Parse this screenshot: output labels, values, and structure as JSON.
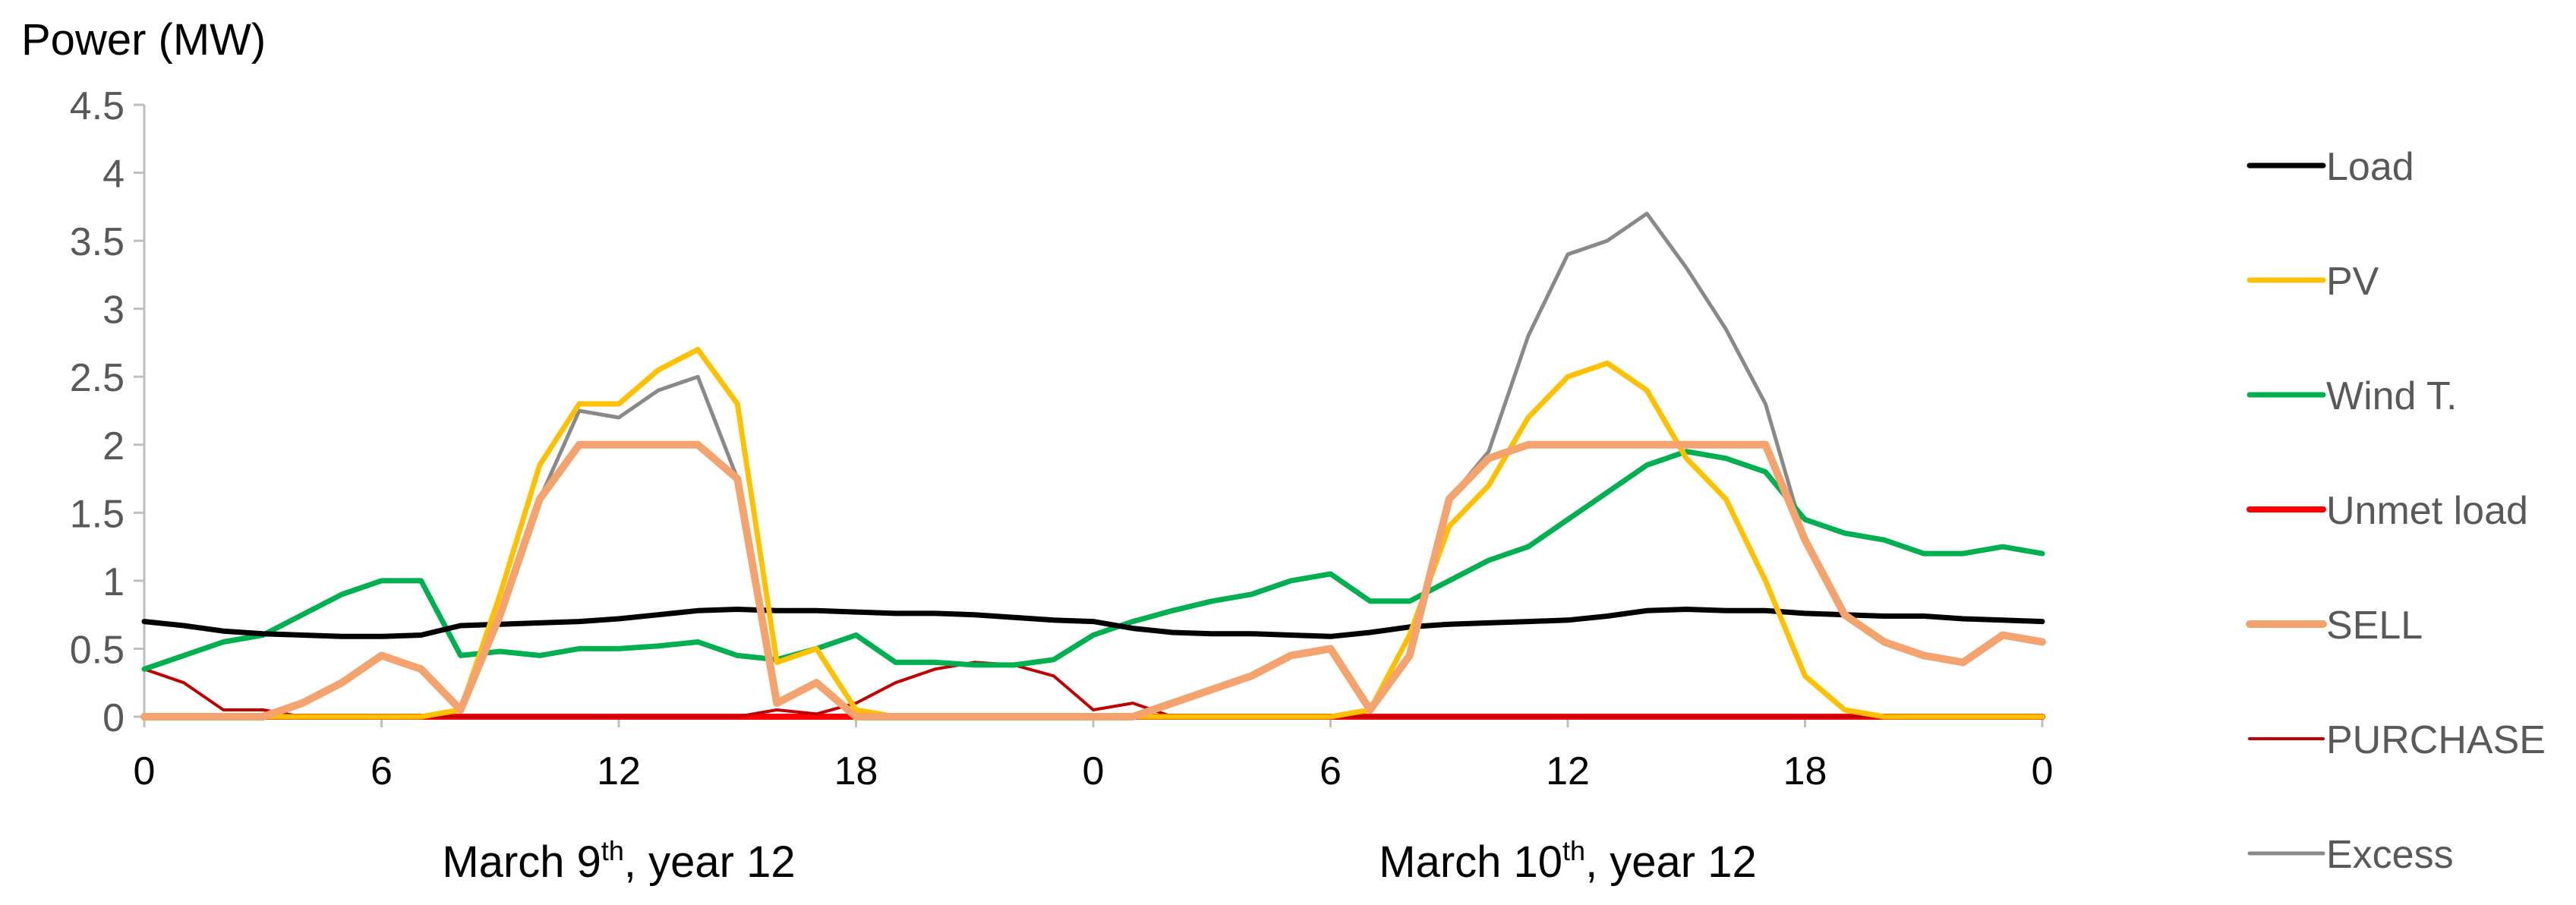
{
  "chart_data": {
    "type": "line",
    "ylabel": "Power (MW)",
    "ylim": [
      0,
      4.5
    ],
    "yticks": [
      "0",
      "0.5",
      "1",
      "1.5",
      "2",
      "2.5",
      "3",
      "3.5",
      "4",
      "4.5"
    ],
    "x_unit": "hours",
    "xlim": [
      0,
      48
    ],
    "xticks": [
      {
        "x": 0,
        "label": "0"
      },
      {
        "x": 6,
        "label": "6"
      },
      {
        "x": 12,
        "label": "12"
      },
      {
        "x": 18,
        "label": "18"
      },
      {
        "x": 24,
        "label": "0"
      },
      {
        "x": 30,
        "label": "6"
      },
      {
        "x": 36,
        "label": "12"
      },
      {
        "x": 42,
        "label": "18"
      },
      {
        "x": 48,
        "label": "0"
      }
    ],
    "day_labels": [
      {
        "main": "March 9",
        "sup": "th",
        "rest": ", year 12"
      },
      {
        "main": "March 10",
        "sup": "th",
        "rest": ", year 12"
      }
    ],
    "grid": false,
    "legend_position": "right",
    "x": [
      0,
      1,
      2,
      3,
      4,
      5,
      6,
      7,
      8,
      9,
      10,
      11,
      12,
      13,
      14,
      15,
      16,
      17,
      18,
      19,
      20,
      21,
      22,
      23,
      24,
      25,
      26,
      27,
      28,
      29,
      30,
      31,
      32,
      33,
      34,
      35,
      36,
      37,
      38,
      39,
      40,
      41,
      42,
      43,
      44,
      45,
      46,
      47,
      48
    ],
    "series": [
      {
        "name": "Load",
        "color": "#000000",
        "width": 7,
        "values": [
          0.7,
          0.67,
          0.63,
          0.61,
          0.6,
          0.59,
          0.59,
          0.6,
          0.67,
          0.68,
          0.69,
          0.7,
          0.72,
          0.75,
          0.78,
          0.79,
          0.78,
          0.78,
          0.77,
          0.76,
          0.76,
          0.75,
          0.73,
          0.71,
          0.7,
          0.65,
          0.62,
          0.61,
          0.61,
          0.6,
          0.59,
          0.62,
          0.66,
          0.68,
          0.69,
          0.7,
          0.71,
          0.74,
          0.78,
          0.79,
          0.78,
          0.78,
          0.76,
          0.75,
          0.74,
          0.74,
          0.72,
          0.71,
          0.7
        ]
      },
      {
        "name": "PV",
        "color": "#FFC000",
        "width": 7,
        "values": [
          0,
          0,
          0,
          0,
          0,
          0,
          0,
          0,
          0.05,
          0.9,
          1.85,
          2.3,
          2.3,
          2.55,
          2.7,
          2.3,
          0.4,
          0.5,
          0.05,
          0,
          0,
          0,
          0,
          0,
          0,
          0,
          0,
          0,
          0,
          0,
          0,
          0.05,
          0.6,
          1.4,
          1.7,
          2.2,
          2.5,
          2.6,
          2.4,
          1.9,
          1.6,
          1.0,
          0.3,
          0.05,
          0,
          0,
          0,
          0,
          0
        ]
      },
      {
        "name": "Wind T.",
        "color": "#00B050",
        "width": 7,
        "values": [
          0.35,
          0.45,
          0.55,
          0.6,
          0.75,
          0.9,
          1.0,
          1.0,
          0.45,
          0.48,
          0.45,
          0.5,
          0.5,
          0.52,
          0.55,
          0.45,
          0.42,
          0.5,
          0.6,
          0.4,
          0.4,
          0.38,
          0.38,
          0.42,
          0.6,
          0.7,
          0.78,
          0.85,
          0.9,
          1.0,
          1.05,
          0.85,
          0.85,
          1.0,
          1.15,
          1.25,
          1.45,
          1.65,
          1.85,
          1.95,
          1.9,
          1.8,
          1.45,
          1.35,
          1.3,
          1.2,
          1.2,
          1.25,
          1.2
        ]
      },
      {
        "name": "Unmet load",
        "color": "#FF0000",
        "width": 8,
        "values": [
          0,
          0,
          0,
          0,
          0,
          0,
          0,
          0,
          0,
          0,
          0,
          0,
          0,
          0,
          0,
          0,
          0,
          0,
          0,
          0,
          0,
          0,
          0,
          0,
          0,
          0,
          0,
          0,
          0,
          0,
          0,
          0,
          0,
          0,
          0,
          0,
          0,
          0,
          0,
          0,
          0,
          0,
          0,
          0,
          0,
          0,
          0,
          0,
          0
        ]
      },
      {
        "name": "SELL",
        "color": "#F4A26E",
        "width": 10,
        "values": [
          0,
          0,
          0,
          0,
          0.1,
          0.25,
          0.45,
          0.35,
          0.05,
          0.75,
          1.6,
          2.0,
          2.0,
          2.0,
          2.0,
          1.75,
          0.1,
          0.25,
          0,
          0,
          0,
          0,
          0,
          0,
          0,
          0,
          0.1,
          0.2,
          0.3,
          0.45,
          0.5,
          0.05,
          0.45,
          1.6,
          1.9,
          2.0,
          2.0,
          2.0,
          2.0,
          2.0,
          2.0,
          2.0,
          1.3,
          0.75,
          0.55,
          0.45,
          0.4,
          0.6,
          0.55
        ]
      },
      {
        "name": "PURCHASE",
        "color": "#C00000",
        "width": 4,
        "values": [
          0.35,
          0.25,
          0.05,
          0.05,
          0,
          0,
          0,
          0,
          0,
          0,
          0,
          0,
          0,
          0,
          0,
          0,
          0.05,
          0.02,
          0.1,
          0.25,
          0.35,
          0.4,
          0.38,
          0.3,
          0.05,
          0.1,
          0,
          0,
          0,
          0,
          0,
          0,
          0,
          0,
          0,
          0,
          0,
          0,
          0,
          0,
          0,
          0,
          0,
          0,
          0,
          0,
          0,
          0,
          0
        ]
      },
      {
        "name": "Excess",
        "color": "#898989",
        "width": 5,
        "values": [
          0,
          0,
          0,
          0,
          0.1,
          0.25,
          0.45,
          0.35,
          0.05,
          0.75,
          1.6,
          2.25,
          2.2,
          2.4,
          2.5,
          1.75,
          0.1,
          0.25,
          0,
          0,
          0,
          0,
          0,
          0,
          0,
          0,
          0.1,
          0.2,
          0.3,
          0.45,
          0.5,
          0.05,
          0.45,
          1.6,
          1.95,
          2.8,
          3.4,
          3.5,
          3.7,
          3.3,
          2.85,
          2.3,
          1.3,
          0.75,
          0.55,
          0.45,
          0.4,
          0.6,
          0.55
        ]
      }
    ]
  }
}
